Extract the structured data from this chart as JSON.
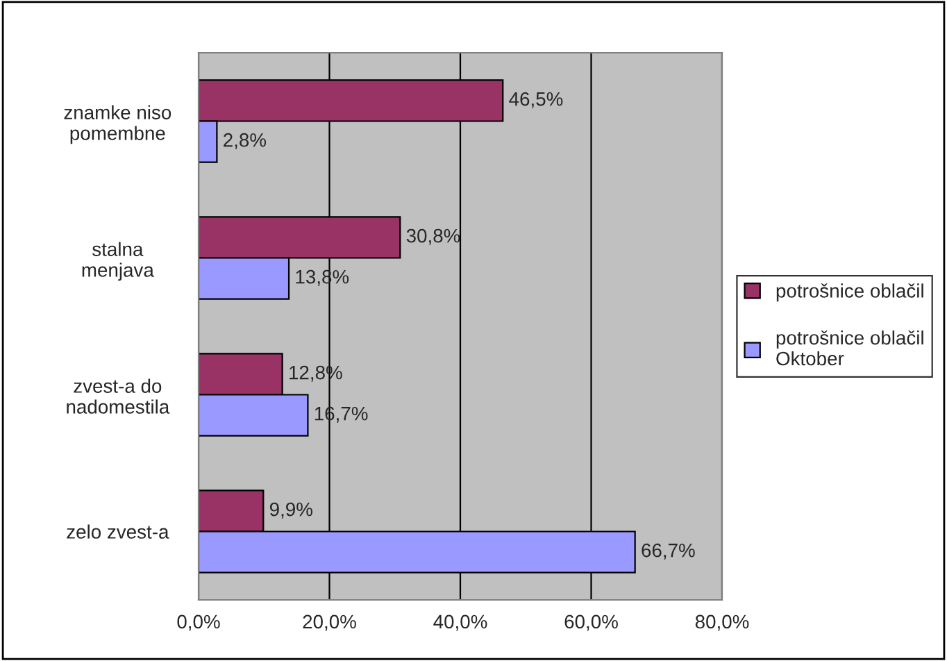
{
  "chart_data": {
    "type": "bar",
    "orientation": "horizontal",
    "categories": [
      "znamke niso\npomembne",
      "stalna\nmenjava",
      "zvest-a do\nnadomestila",
      "zelo zvest-a"
    ],
    "series": [
      {
        "name": "potrošnice oblačil",
        "color": "#993366",
        "values": [
          46.5,
          30.8,
          12.8,
          9.9
        ],
        "value_labels": [
          "46,5%",
          "30,8%",
          "12,8%",
          "9,9%"
        ]
      },
      {
        "name": "potrošnice oblačil\nOktober",
        "color": "#9999ff",
        "values": [
          2.8,
          13.8,
          16.7,
          66.7
        ],
        "value_labels": [
          "2,8%",
          "13,8%",
          "16,7%",
          "66,7%"
        ]
      }
    ],
    "xlim": [
      0,
      80
    ],
    "xticks": [
      {
        "value": 0,
        "label": "0,0%"
      },
      {
        "value": 20,
        "label": "20,0%"
      },
      {
        "value": 40,
        "label": "40,0%"
      },
      {
        "value": 60,
        "label": "60,0%"
      },
      {
        "value": 80,
        "label": "80,0%"
      }
    ],
    "grid": "x",
    "legend": "right"
  }
}
